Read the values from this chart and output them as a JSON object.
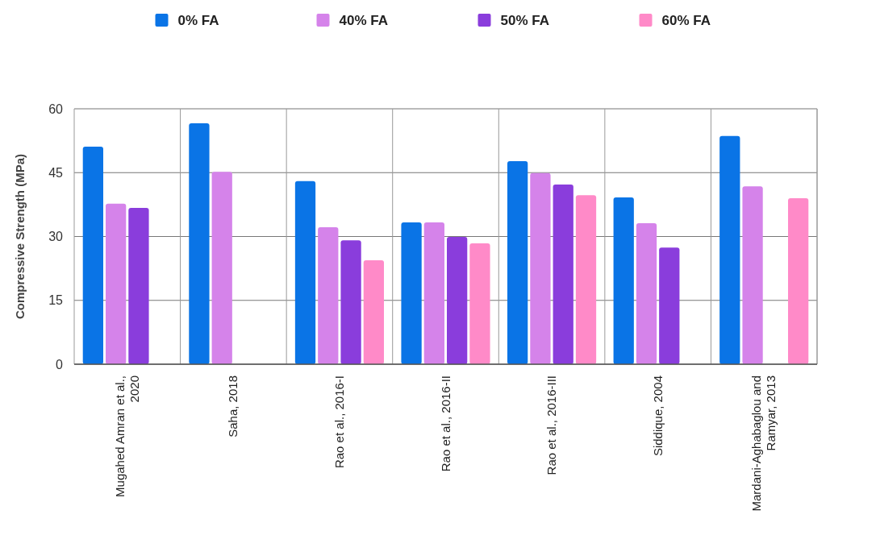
{
  "chart_data": {
    "type": "bar",
    "ylabel": "Compressive Strength (MPa)",
    "categories": [
      "Mugahed Amran et al., 2020",
      "Saha, 2018",
      "Rao et al., 2016-I",
      "Rao et al., 2016-II",
      "Rao et al., 2016-III",
      "Siddique, 2004",
      "Mardani-Aghabaglou and Ramyar, 2013"
    ],
    "series": [
      {
        "name": "0% FA",
        "color": "#0a74e6",
        "values": [
          51.1,
          56.6,
          43.0,
          33.3,
          47.7,
          39.2,
          53.6
        ]
      },
      {
        "name": "40% FA",
        "color": "#d583ea",
        "values": [
          37.7,
          45.2,
          32.2,
          33.3,
          44.9,
          33.1,
          41.8
        ]
      },
      {
        "name": "50% FA",
        "color": "#8a3ddc",
        "values": [
          36.7,
          null,
          29.1,
          29.9,
          42.2,
          27.4,
          null
        ]
      },
      {
        "name": "60% FA",
        "color": "#ff8ac8",
        "values": [
          null,
          null,
          24.4,
          28.4,
          39.7,
          null,
          39.0
        ]
      }
    ],
    "ylim": [
      0,
      60
    ],
    "yticks": [
      0,
      15,
      30,
      45,
      60
    ],
    "grid": true,
    "legend": "top"
  }
}
